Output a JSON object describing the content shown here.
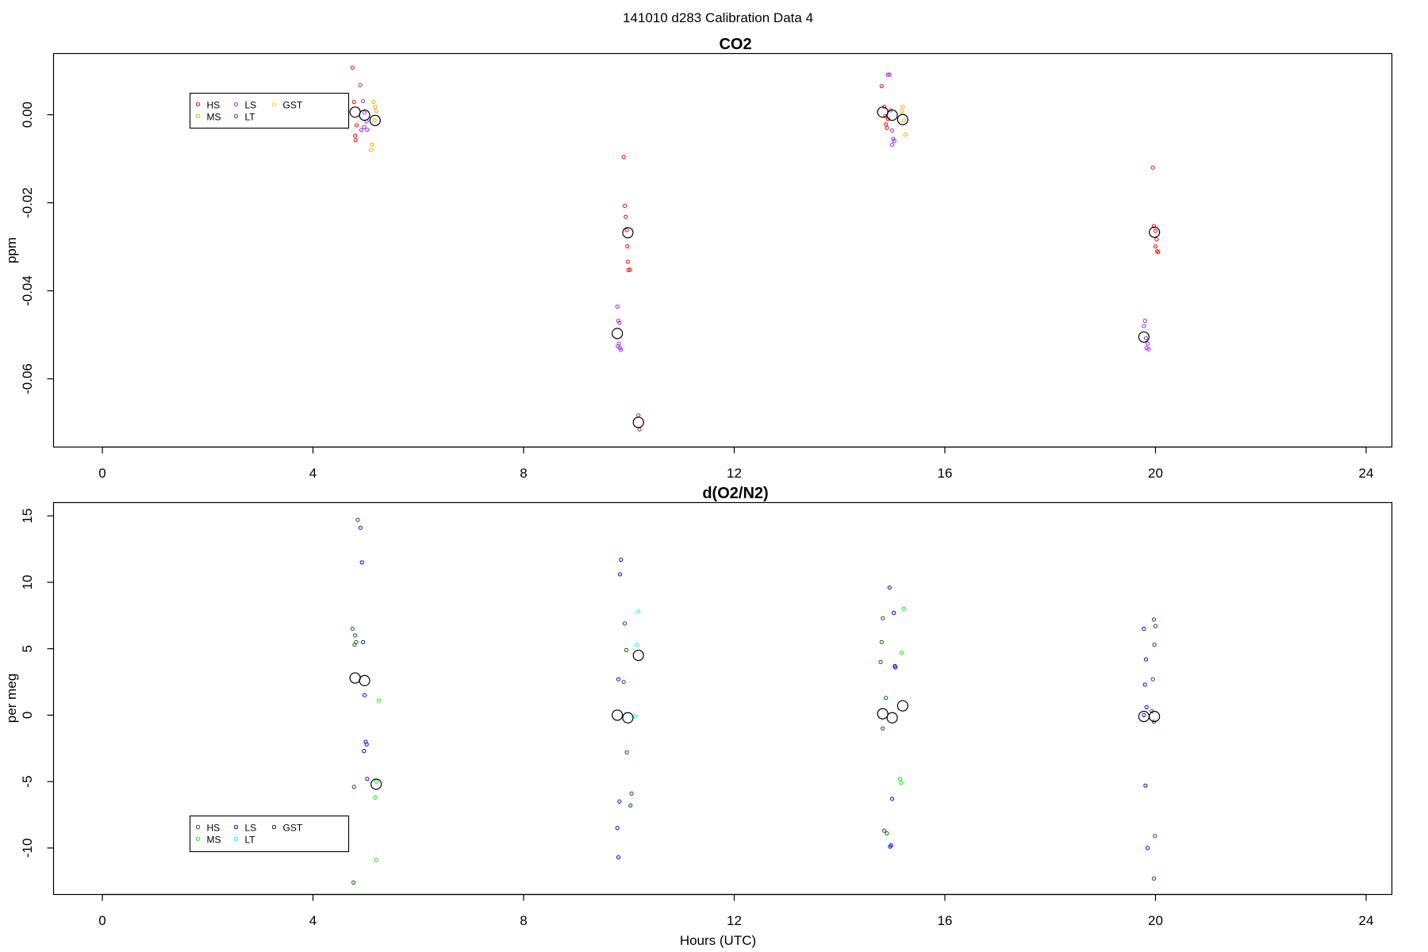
{
  "figure": {
    "title": "141010   d283   Calibration Data 4",
    "xlabel": "Hours (UTC)"
  },
  "chart_data": [
    {
      "type": "scatter",
      "title": "CO2",
      "xlabel": "",
      "ylabel": "ppm",
      "xlim": [
        -1.1,
        24.8
      ],
      "ylim": [
        -0.0755,
        0.0139
      ],
      "xticks": [
        0,
        4,
        8,
        12,
        16,
        20,
        24
      ],
      "xtick_labels": [
        "0",
        "4",
        "8",
        "12",
        "16",
        "20",
        "24"
      ],
      "yticks": [
        0.0,
        -0.02,
        -0.04,
        -0.06
      ],
      "ytick_labels": [
        "0.00",
        "-0.02",
        "-0.04",
        "-0.06"
      ],
      "grid": false,
      "legend_position": "top-left",
      "legend": [
        {
          "label": "HS",
          "color": "#ff0000"
        },
        {
          "label": "LS",
          "color": "#a020f0"
        },
        {
          "label": "GST",
          "color": "#ffd700"
        },
        {
          "label": "MS",
          "color": "#ffa500"
        },
        {
          "label": "LT",
          "color": "#b22222"
        }
      ],
      "series": [
        {
          "color": "#ff0000",
          "points": [
            [
              4.75,
              0.0107
            ],
            [
              4.78,
              0.0029
            ],
            [
              4.8,
              -0.0048
            ],
            [
              4.81,
              -0.0058
            ],
            [
              4.83,
              -0.0024
            ],
            [
              14.8,
              0.0065
            ],
            [
              14.85,
              0.0018
            ],
            [
              14.88,
              -0.0022
            ],
            [
              14.9,
              -0.003
            ],
            [
              14.92,
              -0.001
            ],
            [
              14.87,
              -0.0003
            ],
            [
              9.9,
              -0.0096
            ],
            [
              9.92,
              -0.0207
            ],
            [
              9.94,
              -0.0232
            ],
            [
              9.96,
              -0.0262
            ],
            [
              9.97,
              -0.0299
            ],
            [
              9.98,
              -0.0334
            ],
            [
              9.99,
              -0.0353
            ],
            [
              10.02,
              -0.0352
            ],
            [
              19.95,
              -0.012
            ],
            [
              19.97,
              -0.0253
            ],
            [
              20.0,
              -0.0264
            ],
            [
              20.02,
              -0.0283
            ],
            [
              20.0,
              -0.0299
            ],
            [
              20.03,
              -0.031
            ],
            [
              20.05,
              -0.0312
            ]
          ]
        },
        {
          "color": "#a020f0",
          "points": [
            [
              4.9,
              0.0067
            ],
            [
              4.95,
              0.0031
            ],
            [
              4.98,
              0.0005
            ],
            [
              5.02,
              -0.0015
            ],
            [
              4.97,
              -0.0028
            ],
            [
              5.03,
              -0.0034
            ],
            [
              4.92,
              -0.0035
            ],
            [
              14.92,
              0.0091
            ],
            [
              14.95,
              0.0091
            ],
            [
              14.97,
              0.001
            ],
            [
              15.0,
              -0.0036
            ],
            [
              15.02,
              -0.0055
            ],
            [
              15.04,
              -0.0059
            ],
            [
              15.0,
              -0.0068
            ],
            [
              9.78,
              -0.0436
            ],
            [
              9.8,
              -0.0468
            ],
            [
              9.82,
              -0.0473
            ],
            [
              9.81,
              -0.052
            ],
            [
              9.79,
              -0.0526
            ],
            [
              9.83,
              -0.053
            ],
            [
              9.85,
              -0.0534
            ],
            [
              19.8,
              -0.0468
            ],
            [
              19.78,
              -0.048
            ],
            [
              19.82,
              -0.0508
            ],
            [
              19.85,
              -0.052
            ],
            [
              19.83,
              -0.053
            ],
            [
              19.87,
              -0.0533
            ]
          ]
        },
        {
          "color": "#ffa500",
          "points": [
            [
              5.15,
              0.0029
            ],
            [
              5.18,
              0.0018
            ],
            [
              5.2,
              0.0009
            ],
            [
              5.17,
              -0.0013
            ],
            [
              5.12,
              -0.0068
            ],
            [
              5.1,
              -0.008
            ],
            [
              15.2,
              0.0018
            ],
            [
              15.18,
              0.0007
            ],
            [
              15.22,
              -0.0013
            ],
            [
              15.25,
              -0.0045
            ]
          ]
        },
        {
          "color": "#b22222",
          "points": [
            [
              10.18,
              -0.0683
            ],
            [
              10.2,
              -0.0715
            ]
          ]
        },
        {
          "color": "#000000",
          "size": "large",
          "points": [
            [
              4.8,
              0.0006
            ],
            [
              4.98,
              -0.0001
            ],
            [
              5.18,
              -0.0013
            ],
            [
              14.82,
              0.0006
            ],
            [
              15.0,
              -0.0001
            ],
            [
              15.2,
              -0.0011
            ],
            [
              9.78,
              -0.0497
            ],
            [
              9.98,
              -0.0268
            ],
            [
              10.18,
              -0.0699
            ],
            [
              19.78,
              -0.0505
            ],
            [
              19.98,
              -0.0267
            ]
          ]
        }
      ]
    },
    {
      "type": "scatter",
      "title": "d(O2/N2)",
      "xlabel": "Hours (UTC)",
      "ylabel": "per meg",
      "xlim": [
        -1.1,
        24.8
      ],
      "ylim": [
        -13.5,
        16.0
      ],
      "xticks": [
        0,
        4,
        8,
        12,
        16,
        20,
        24
      ],
      "xtick_labels": [
        "0",
        "4",
        "8",
        "12",
        "16",
        "20",
        "24"
      ],
      "yticks": [
        15,
        10,
        5,
        0,
        -5,
        -10
      ],
      "ytick_labels": [
        "15",
        "10",
        "5",
        "0",
        "-5",
        "-10"
      ],
      "grid": false,
      "legend_position": "bottom-left",
      "legend": [
        {
          "label": "HS",
          "color": "#006400"
        },
        {
          "label": "LS",
          "color": "#0000ff"
        },
        {
          "label": "GST",
          "color": "#00008b"
        },
        {
          "label": "MS",
          "color": "#00ff00"
        },
        {
          "label": "LT",
          "color": "#00ffff"
        }
      ],
      "series": [
        {
          "color": "#006400",
          "points": [
            [
              4.85,
              14.7
            ],
            [
              4.75,
              6.5
            ],
            [
              4.8,
              6.0
            ],
            [
              4.82,
              5.5
            ],
            [
              4.79,
              5.3
            ],
            [
              4.78,
              -5.4
            ],
            [
              4.77,
              -12.6
            ],
            [
              9.92,
              6.9
            ],
            [
              9.95,
              4.9
            ],
            [
              9.9,
              2.5
            ],
            [
              9.96,
              -2.8
            ],
            [
              10.05,
              -5.9
            ],
            [
              10.03,
              -6.8
            ],
            [
              14.82,
              7.3
            ],
            [
              14.8,
              5.5
            ],
            [
              14.78,
              4.0
            ],
            [
              14.88,
              1.3
            ],
            [
              14.82,
              -1.0
            ],
            [
              14.85,
              -8.7
            ],
            [
              14.9,
              -8.9
            ],
            [
              19.97,
              7.2
            ],
            [
              20.0,
              6.7
            ],
            [
              19.98,
              5.3
            ],
            [
              19.95,
              2.7
            ],
            [
              19.93,
              0.3
            ],
            [
              19.97,
              -0.5
            ],
            [
              19.99,
              -9.1
            ],
            [
              19.97,
              -12.3
            ]
          ]
        },
        {
          "color": "#0000ff",
          "points": [
            [
              4.9,
              14.1
            ],
            [
              4.93,
              11.5
            ],
            [
              4.95,
              5.5
            ],
            [
              4.98,
              1.5
            ],
            [
              5.0,
              -2.0
            ],
            [
              5.02,
              -2.2
            ],
            [
              4.97,
              -2.7
            ],
            [
              5.03,
              -4.8
            ],
            [
              9.85,
              11.7
            ],
            [
              9.83,
              10.6
            ],
            [
              9.8,
              2.7
            ],
            [
              9.82,
              -6.5
            ],
            [
              9.78,
              -8.5
            ],
            [
              9.8,
              -10.7
            ],
            [
              14.95,
              9.6
            ],
            [
              15.03,
              7.7
            ],
            [
              15.05,
              3.7
            ],
            [
              15.06,
              3.6
            ],
            [
              15.0,
              -6.3
            ],
            [
              14.98,
              -9.8
            ],
            [
              14.96,
              -9.9
            ],
            [
              19.78,
              6.5
            ],
            [
              19.82,
              4.2
            ],
            [
              19.8,
              2.3
            ],
            [
              19.83,
              0.6
            ],
            [
              19.78,
              0.0
            ],
            [
              19.81,
              -5.3
            ],
            [
              19.85,
              -10.0
            ]
          ]
        },
        {
          "color": "#00ff00",
          "points": [
            [
              5.25,
              1.1
            ],
            [
              5.2,
              -5.0
            ],
            [
              5.18,
              -6.2
            ],
            [
              5.2,
              -10.9
            ],
            [
              15.22,
              8.0
            ],
            [
              15.18,
              4.7
            ],
            [
              15.15,
              -4.8
            ],
            [
              15.17,
              -5.1
            ]
          ]
        },
        {
          "color": "#00ffff",
          "points": [
            [
              10.18,
              7.8
            ],
            [
              10.15,
              5.3
            ],
            [
              10.12,
              -0.1
            ]
          ]
        },
        {
          "color": "#000000",
          "size": "large",
          "points": [
            [
              4.8,
              2.8
            ],
            [
              4.98,
              2.6
            ],
            [
              5.2,
              -5.2
            ],
            [
              9.78,
              0.0
            ],
            [
              9.98,
              -0.2
            ],
            [
              10.18,
              4.5
            ],
            [
              14.82,
              0.1
            ],
            [
              15.0,
              -0.2
            ],
            [
              15.2,
              0.7
            ],
            [
              19.78,
              -0.1
            ],
            [
              19.98,
              -0.1
            ]
          ]
        }
      ]
    }
  ]
}
